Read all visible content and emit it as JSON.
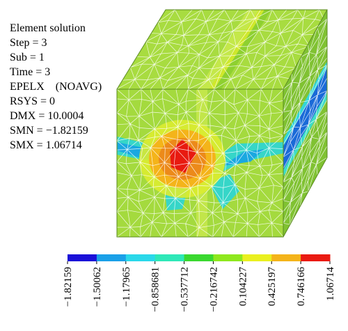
{
  "window": {
    "title": "Element solution"
  },
  "info_lines": [
    "Element solution",
    "Step = 3",
    "Sub = 1",
    "Time = 3",
    "EPELX    (NOAVG)",
    "RSYS = 0",
    "DMX = 10.0004",
    "SMN = −1.82159",
    "SMX = 1.06714"
  ],
  "legend": {
    "colors": [
      "#1a10d8",
      "#1aa0e8",
      "#2ad8ea",
      "#2ee8b8",
      "#3ad830",
      "#8ee81e",
      "#eaf020",
      "#f4b41a",
      "#ea1a12"
    ],
    "tick_labels": [
      "−1.82159",
      "−1.50062",
      "−1.17965",
      "−0.858681",
      "−0.537712",
      "−0.216742",
      "0.104227",
      "0.425197",
      "0.746166",
      "1.06714"
    ]
  },
  "colors": {
    "face_green": "#9ad63a",
    "face_green_light": "#b2e046",
    "face_green_dark": "#7cbf2c",
    "mesh": "#ffffff",
    "hot": "#e81a10",
    "warm": "#f2a41a",
    "yellow": "#eef020",
    "cyan": "#36e0d8",
    "blue": "#1aa8e0",
    "band_blue": "#1a6ad8"
  }
}
